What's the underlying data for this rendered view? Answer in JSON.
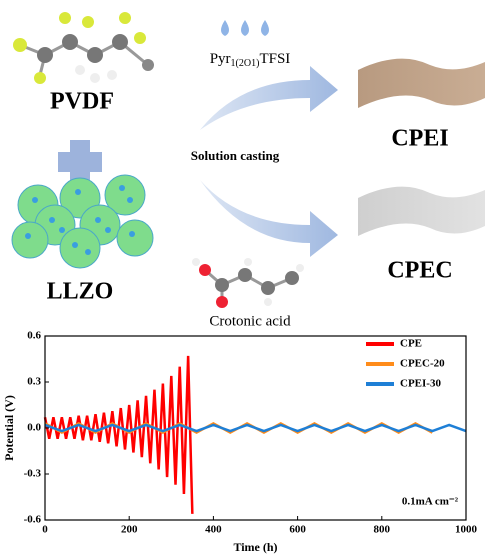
{
  "diagram": {
    "polymer": "PVDF",
    "filler": "LLZO",
    "process": "Solution casting",
    "ionic_liquid": {
      "name": "Pyr",
      "subscript": "1(2O1)",
      "suffix": "TFSI"
    },
    "additive": "Crotonic acid",
    "product_1": "CPEI",
    "product_2": "CPEC"
  },
  "chart_data": {
    "type": "line",
    "xlabel": "Time (h)",
    "ylabel": "Potential (V)",
    "annotation": "0.1mA cm⁻²",
    "legend": "upper right",
    "xlim": [
      0,
      1000
    ],
    "xticks": [
      0,
      200,
      400,
      600,
      800,
      1000
    ],
    "ylim": [
      -0.6,
      0.6
    ],
    "yticks": [
      -0.6,
      -0.3,
      {
        "value": 0,
        "label": "0.0"
      },
      0.3,
      0.6
    ],
    "series": [
      {
        "name": "CPE",
        "color": "#ff0000",
        "x": [
          0,
          10,
          20,
          30,
          40,
          50,
          60,
          70,
          80,
          90,
          100,
          110,
          120,
          130,
          140,
          150,
          160,
          170,
          180,
          190,
          200,
          210,
          220,
          230,
          240,
          250,
          260,
          270,
          280,
          290,
          300,
          310,
          320,
          330,
          340,
          350
        ],
        "values": [
          0.07,
          -0.07,
          0.07,
          -0.07,
          0.07,
          -0.07,
          0.07,
          -0.07,
          0.08,
          -0.08,
          0.08,
          -0.08,
          0.09,
          -0.09,
          0.1,
          -0.1,
          0.11,
          -0.12,
          0.13,
          -0.14,
          0.15,
          -0.16,
          0.18,
          -0.19,
          0.21,
          -0.23,
          0.25,
          -0.27,
          0.29,
          -0.32,
          0.34,
          -0.37,
          0.4,
          -0.43,
          0.47,
          -0.56
        ]
      },
      {
        "name": "CPEC-20",
        "color": "#ff8c1a",
        "x": [
          0,
          40,
          80,
          120,
          160,
          200,
          240,
          280,
          320,
          360,
          400,
          440,
          480,
          520,
          560,
          600,
          640,
          680,
          720,
          760,
          800,
          840,
          880,
          920
        ],
        "values": [
          0.03,
          -0.03,
          0.03,
          -0.03,
          0.03,
          -0.03,
          0.03,
          -0.03,
          0.03,
          -0.03,
          0.03,
          -0.03,
          0.03,
          -0.03,
          0.03,
          -0.03,
          0.03,
          -0.03,
          0.03,
          -0.03,
          0.03,
          -0.03,
          0.03,
          -0.03
        ]
      },
      {
        "name": "CPEI-30",
        "color": "#1e7fd6",
        "x": [
          0,
          40,
          80,
          120,
          160,
          200,
          240,
          280,
          320,
          360,
          400,
          440,
          480,
          520,
          560,
          600,
          640,
          680,
          720,
          760,
          800,
          840,
          880,
          920,
          960,
          1000
        ],
        "values": [
          0.02,
          -0.02,
          0.02,
          -0.02,
          0.02,
          -0.02,
          0.02,
          -0.02,
          0.02,
          -0.02,
          0.02,
          -0.02,
          0.02,
          -0.02,
          0.02,
          -0.02,
          0.02,
          -0.02,
          0.02,
          -0.02,
          0.02,
          -0.02,
          0.02,
          -0.02,
          0.02,
          -0.02
        ]
      }
    ]
  }
}
